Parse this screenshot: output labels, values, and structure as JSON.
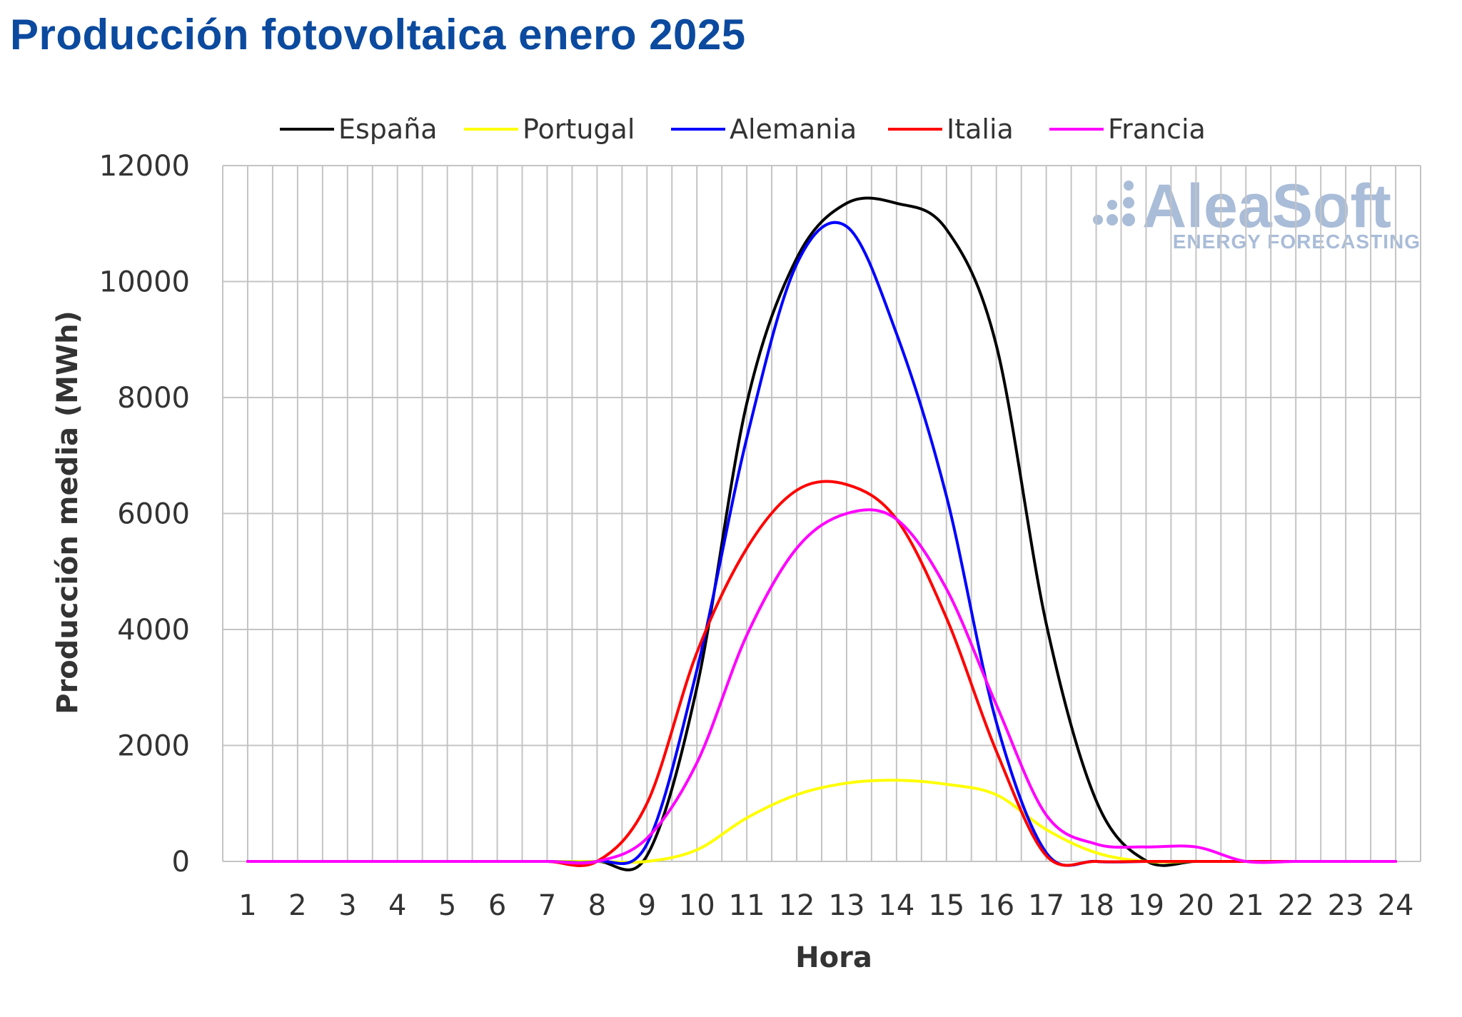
{
  "title": "Producción fotovoltaica enero 2025",
  "watermark": {
    "brand": "AleaSoft",
    "tagline": "ENERGY FORECASTING",
    "icon": "dots-logo-icon",
    "color": "#a9bcd8"
  },
  "chart_data": {
    "type": "line",
    "title": "Producción fotovoltaica enero 2025",
    "xlabel": "Hora",
    "ylabel": "Producción media (MWh)",
    "ylim": [
      0,
      12000
    ],
    "yticks": [
      "0",
      "2000",
      "4000",
      "6000",
      "8000",
      "10000",
      "12000"
    ],
    "xlim": [
      0.5,
      24.5
    ],
    "x": [
      1,
      2,
      3,
      4,
      5,
      6,
      7,
      8,
      9,
      10,
      11,
      12,
      13,
      14,
      15,
      16,
      17,
      18,
      19,
      20,
      21,
      22,
      23,
      24
    ],
    "grid": true,
    "legend_position": "top",
    "series": [
      {
        "name": "España",
        "color": "#000000",
        "values": [
          0,
          0,
          0,
          0,
          0,
          0,
          0,
          0,
          100,
          3000,
          7900,
          10400,
          11350,
          11350,
          10900,
          8900,
          4100,
          1050,
          10,
          0,
          0,
          0,
          0,
          0
        ]
      },
      {
        "name": "Portugal",
        "color": "#ffff00",
        "values": [
          0,
          0,
          0,
          0,
          0,
          0,
          0,
          0,
          0,
          200,
          750,
          1150,
          1350,
          1400,
          1330,
          1150,
          550,
          150,
          0,
          0,
          0,
          0,
          0,
          0
        ]
      },
      {
        "name": "Alemania",
        "color": "#0000ff",
        "values": [
          0,
          0,
          0,
          0,
          0,
          0,
          0,
          0,
          300,
          3300,
          7300,
          10300,
          10950,
          9100,
          6300,
          2400,
          150,
          0,
          0,
          0,
          0,
          0,
          0,
          0
        ]
      },
      {
        "name": "Italia",
        "color": "#ff0000",
        "values": [
          0,
          0,
          0,
          0,
          0,
          0,
          0,
          0,
          1000,
          3600,
          5400,
          6400,
          6500,
          5900,
          4200,
          1900,
          100,
          0,
          0,
          0,
          0,
          0,
          0,
          0
        ]
      },
      {
        "name": "Francia",
        "color": "#ff00ff",
        "values": [
          0,
          0,
          0,
          0,
          0,
          0,
          0,
          0,
          400,
          1700,
          3900,
          5400,
          6000,
          5900,
          4700,
          2700,
          800,
          300,
          250,
          250,
          0,
          0,
          0,
          0
        ]
      }
    ]
  }
}
